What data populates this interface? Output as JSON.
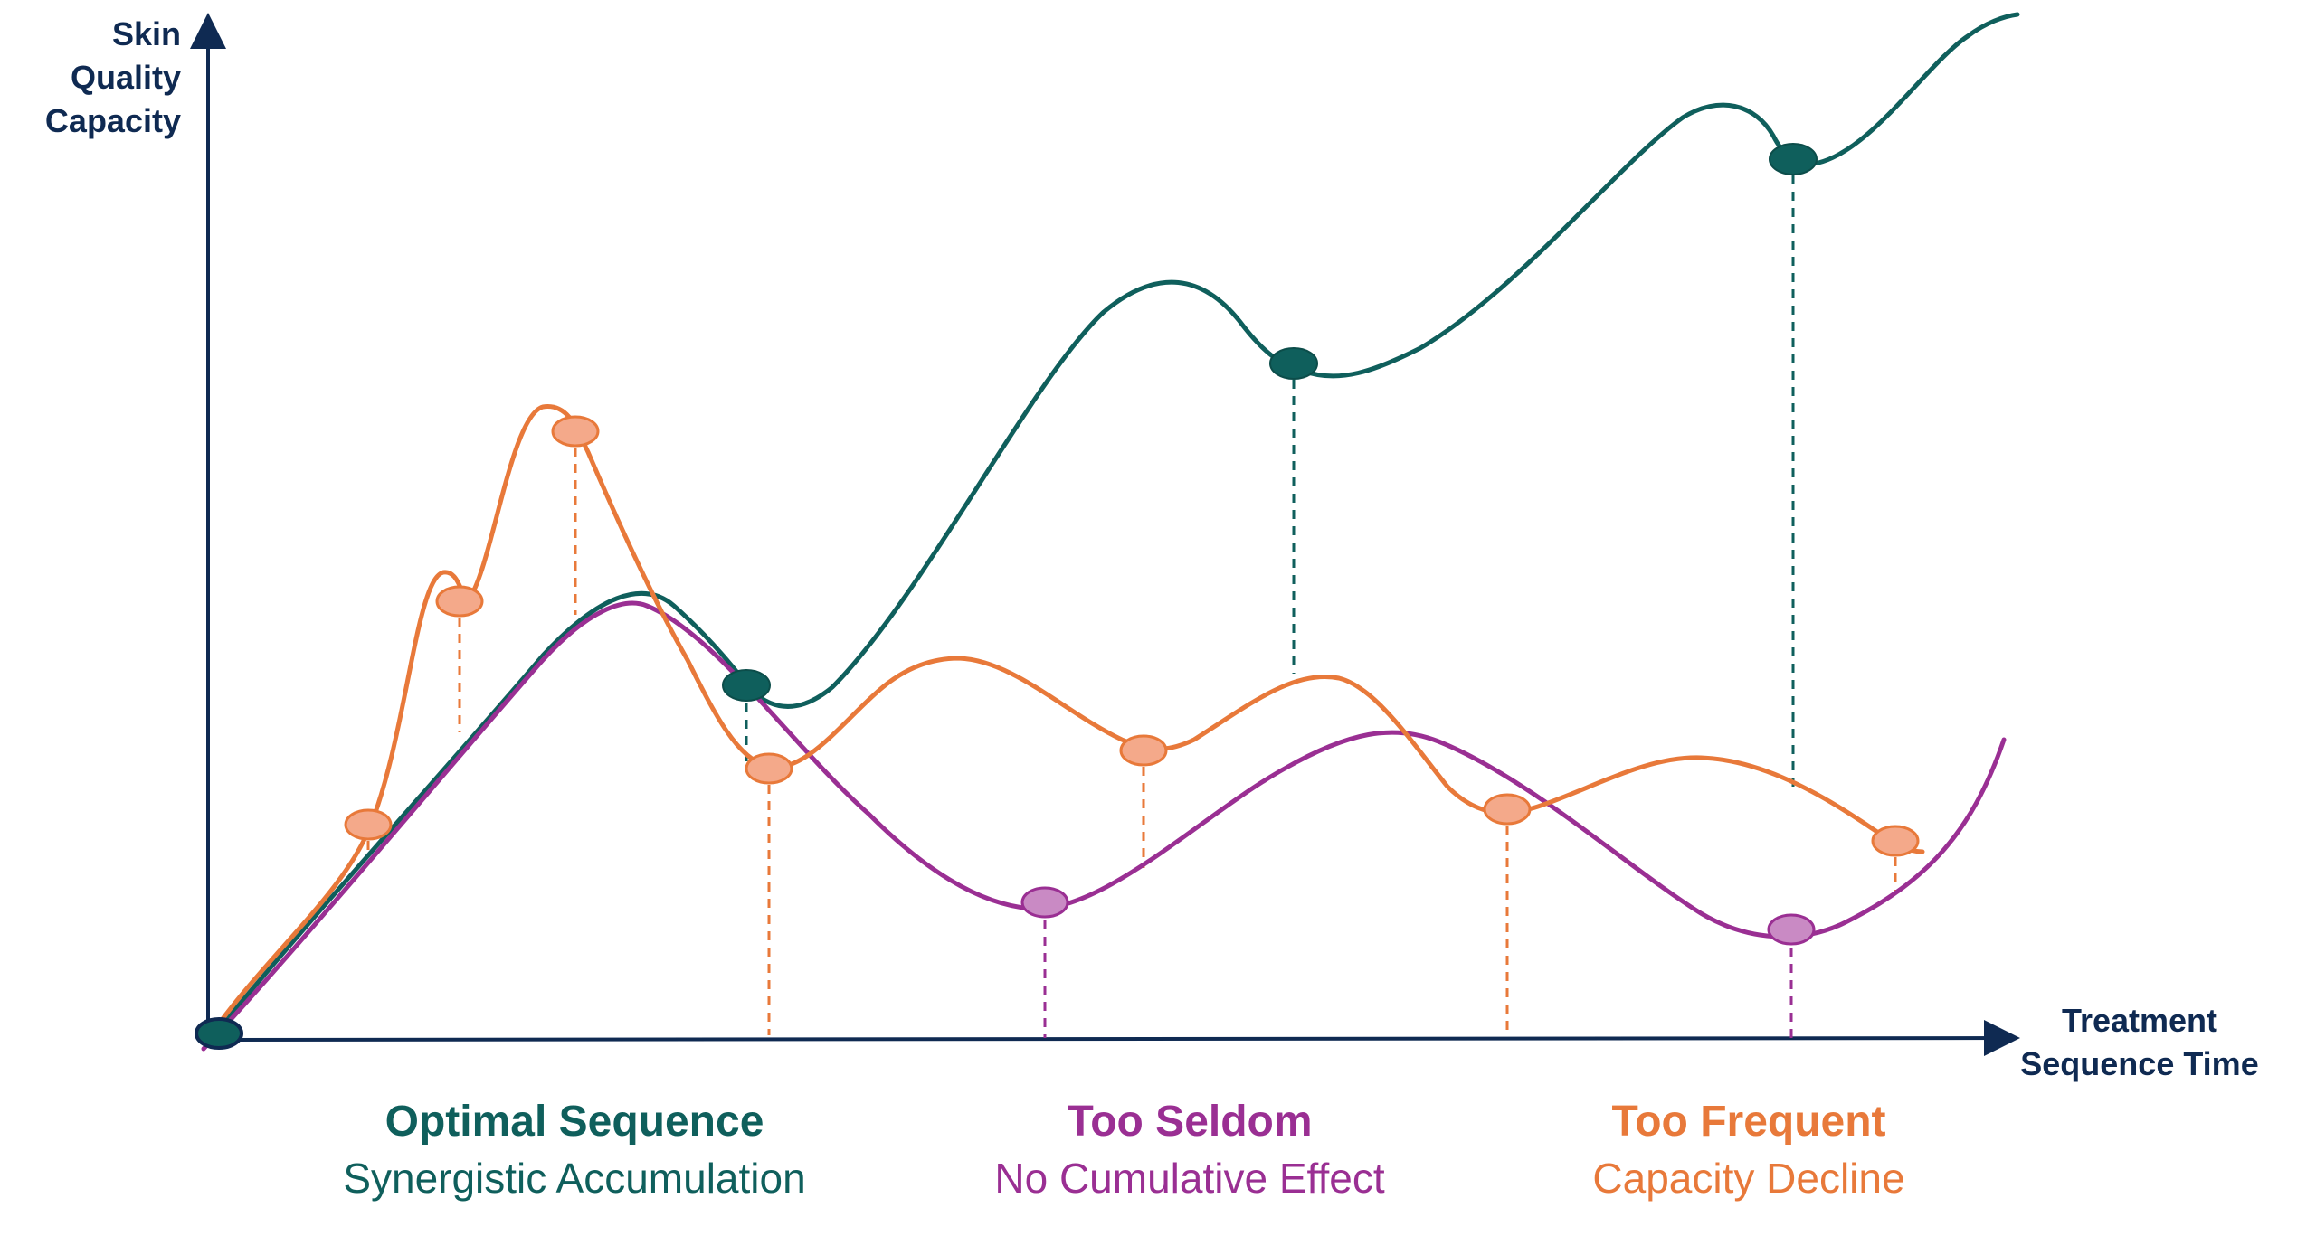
{
  "axes": {
    "y_label_lines": [
      "Skin",
      "Quality",
      "Capacity"
    ],
    "x_label_lines": [
      "Treatment",
      "Sequence Time"
    ]
  },
  "colors": {
    "axis": "#0f2a52",
    "optimal": "#0f5f5c",
    "seldom": "#9a2f93",
    "frequent": "#e8793a",
    "frequent_marker_fill": "#f4a98a",
    "seldom_marker_fill": "#c98ac4"
  },
  "legend": {
    "optimal": {
      "title": "Optimal Sequence",
      "subtitle": "Synergistic Accumulation"
    },
    "seldom": {
      "title": "Too Seldom",
      "subtitle": "No Cumulative Effect"
    },
    "frequent": {
      "title": "Too Frequent",
      "subtitle": "Capacity Decline"
    }
  }
}
